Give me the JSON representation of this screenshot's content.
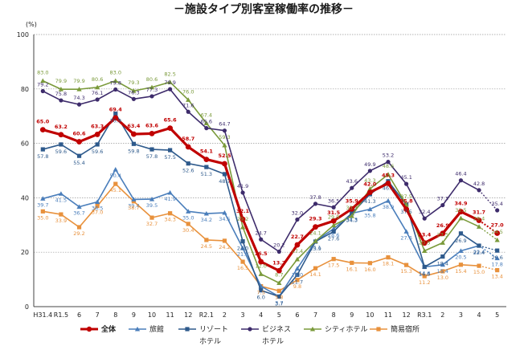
{
  "chart_data": {
    "type": "line",
    "title": "－施設タイプ別客室稼働率の推移－",
    "unit_label": "(%)",
    "ylim": [
      0,
      100
    ],
    "yticks": [
      "0",
      "20",
      "40",
      "60",
      "80",
      "100"
    ],
    "grid": "dotted horizontal",
    "categories": [
      "H31.4",
      "R1.5",
      "6",
      "7",
      "8",
      "9",
      "10",
      "11",
      "12",
      "R2.1",
      "2",
      "3",
      "4",
      "5",
      "6",
      "7",
      "8",
      "9",
      "10",
      "11",
      "12",
      "R3.1",
      "2",
      "3",
      "4",
      "5"
    ],
    "category_sublabels": {
      "R2.1": "",
      "R3.1": ""
    },
    "legend_position": "bottom",
    "series": [
      {
        "name": "全体",
        "color": "#c00000",
        "marker": "circle",
        "bold": true,
        "values": [
          65.0,
          63.2,
          60.6,
          63.3,
          69.4,
          63.4,
          63.6,
          65.6,
          58.7,
          54.1,
          52.5,
          32.1,
          16.5,
          13.2,
          22.7,
          29.3,
          31.5,
          35.9,
          42.0,
          45.3,
          35.8,
          23.4,
          26.9,
          34.9,
          31.7,
          27.0
        ],
        "labels": [
          "65.0",
          "63.2",
          "60.6",
          "63.3",
          "69.4",
          "63.4",
          "63.6",
          "65.6",
          "58.7",
          "54.1",
          "52.5",
          "32.1",
          "16.5",
          "13.2",
          "22.7",
          "29.3",
          "31.5",
          "35.9",
          "42.0",
          "45.3",
          "35.8",
          "23.4",
          "26.9",
          "34.9",
          "31.7",
          "27.0"
        ]
      },
      {
        "name": "旅館",
        "color": "#4a7ebb",
        "marker": "triangle",
        "values": [
          39.7,
          41.5,
          36.7,
          38.5,
          50.4,
          39.4,
          39.5,
          41.9,
          35.0,
          34.2,
          34.5,
          21.5,
          7.5,
          3.7,
          14.0,
          24.1,
          28.6,
          34.3,
          35.8,
          38.9,
          27.6,
          14.6,
          15.4,
          20.5,
          22.4,
          17.8
        ],
        "labels": [
          "39.7",
          "41.5",
          "36.7",
          "38.5",
          "50.4",
          "39.4",
          "39.5",
          "41.9",
          "35.0",
          "34.2",
          "34.5",
          "21.5",
          "7.5",
          "3.7",
          "14.0",
          "24.1",
          "28.6",
          "34.3",
          "35.8",
          "38.9",
          "27.6",
          "14.6",
          "15.4",
          "20.5",
          "22.4",
          "17.8"
        ]
      },
      {
        "name": "リゾートホテル",
        "color": "#2e5a8c",
        "marker": "square",
        "values": [
          57.8,
          59.6,
          55.4,
          59.6,
          70.9,
          59.8,
          57.8,
          57.5,
          52.6,
          51.3,
          48.7,
          24.0,
          6.0,
          3.7,
          11.7,
          23.9,
          27.6,
          34.3,
          41.3,
          46.1,
          37.5,
          14.6,
          18.4,
          26.9,
          22.4,
          20.6
        ],
        "labels": [
          "57.8",
          "59.6",
          "55.4",
          "59.6",
          "70.9",
          "59.8",
          "57.8",
          "57.5",
          "52.6",
          "51.3",
          "48.7",
          "24.0",
          "6.0",
          "3.7",
          "11.7",
          "23.9",
          "27.6",
          "34.3",
          "41.3",
          "46.1",
          "37.5",
          "14.6",
          "18.4",
          "26.9",
          "22.4",
          "20.6"
        ]
      },
      {
        "name": "ビジネスホテル",
        "color": "#3d2b6b",
        "marker": "circle",
        "values": [
          79.2,
          75.8,
          74.3,
          76.1,
          79.8,
          76.3,
          77.3,
          79.9,
          71.6,
          65.6,
          64.7,
          41.9,
          24.7,
          20.2,
          32.0,
          37.8,
          36.5,
          43.6,
          49.9,
          53.2,
          45.1,
          32.4,
          37.3,
          46.4,
          42.8,
          35.4
        ],
        "labels": [
          "79.2",
          "75.8",
          "74.3",
          "76.1",
          "79.8",
          "76.3",
          "77.3",
          "79.9",
          "71.6",
          "65.6",
          "64.7",
          "41.9",
          "24.7",
          "20.2",
          "32.0",
          "37.8",
          "36.5",
          "43.6",
          "49.9",
          "53.2",
          "45.1",
          "32.4",
          "37.3",
          "46.4",
          "42.8",
          "35.4"
        ]
      },
      {
        "name": "シティホテル",
        "color": "#7a9a3a",
        "marker": "triangle",
        "values": [
          83.0,
          79.9,
          79.9,
          80.6,
          83.0,
          79.3,
          80.6,
          82.5,
          76.0,
          67.4,
          59.3,
          29.2,
          12.0,
          8.7,
          17.4,
          24.1,
          29.9,
          33.3,
          43.3,
          48.6,
          37.5,
          20.5,
          23.5,
          32.5,
          29.4,
          24.5
        ],
        "labels": [
          "83.0",
          "79.9",
          "79.9",
          "80.6",
          "83.0",
          "79.3",
          "80.6",
          "82.5",
          "76.0",
          "67.4",
          "59.3",
          "29.2",
          "12.0",
          "8.7",
          "17.4",
          "24.1",
          "29.9",
          "33.3",
          "43.3",
          "48.6",
          "37.5",
          "20.5",
          "23.5",
          "32.5",
          "29.4",
          "24.5"
        ]
      },
      {
        "name": "簡易宿所",
        "color": "#e8913c",
        "marker": "square",
        "values": [
          35.0,
          33.9,
          29.2,
          37.0,
          45.1,
          38.7,
          32.7,
          34.3,
          30.4,
          24.5,
          24.2,
          16.5,
          7.5,
          5.8,
          9.8,
          14.1,
          17.5,
          16.1,
          16.0,
          18.1,
          15.3,
          11.2,
          13.0,
          15.4,
          15.0,
          13.4
        ],
        "labels": [
          "35.0",
          "33.9",
          "29.2",
          "37.0",
          "45.1",
          "38.7",
          "32.7",
          "34.3",
          "30.4",
          "24.5",
          "24.2",
          "16.5",
          "7.5",
          "5.8",
          "9.8",
          "14.1",
          "17.5",
          "16.1",
          "16.0",
          "18.1",
          "15.3",
          "11.2",
          "13.0",
          "15.4",
          "15.0",
          "13.4"
        ]
      }
    ]
  },
  "legend": [
    {
      "label": "全体",
      "sub": ""
    },
    {
      "label": "旅館",
      "sub": ""
    },
    {
      "label": "リゾート",
      "sub": "ホテル"
    },
    {
      "label": "ビジネス",
      "sub": "ホテル"
    },
    {
      "label": "シティホテル",
      "sub": ""
    },
    {
      "label": "簡易宿所",
      "sub": ""
    }
  ]
}
